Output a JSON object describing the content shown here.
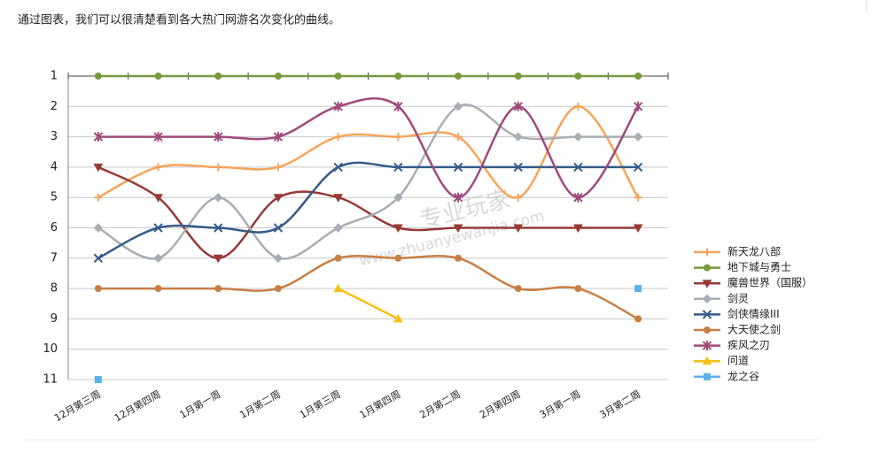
{
  "intro": "通过图表，我们可以很清楚看到各大热门网游名次变化的曲线。",
  "chart_data": {
    "type": "line",
    "smooth": true,
    "y_inverted": true,
    "grid": true,
    "legend": "right",
    "watermark": [
      "专业玩家",
      "www.zhuanyewanjia.com"
    ],
    "categories": [
      "12月第三周",
      "12月第四周",
      "1月第一周",
      "1月第二周",
      "1月第三周",
      "1月第四周",
      "2月第二周",
      "2月第四周",
      "3月第一周",
      "3月第二周"
    ],
    "ylim": [
      1,
      11
    ],
    "yticks": [
      1,
      2,
      3,
      4,
      5,
      6,
      7,
      8,
      9,
      10,
      11
    ],
    "series": [
      {
        "name": "新天龙八部",
        "color": "#f6a45a",
        "marker": "plus",
        "values": [
          5,
          4,
          4,
          4,
          3,
          3,
          3,
          5,
          2,
          5
        ]
      },
      {
        "name": "地下城与勇士",
        "color": "#779a3e",
        "marker": "circle",
        "values": [
          1,
          1,
          1,
          1,
          1,
          1,
          1,
          1,
          1,
          1
        ]
      },
      {
        "name": "魔兽世界（国服）",
        "color": "#963a37",
        "marker": "triangle-down",
        "values": [
          4,
          5,
          7,
          5,
          5,
          6,
          6,
          6,
          6,
          6
        ]
      },
      {
        "name": "剑灵",
        "color": "#a9adb4",
        "marker": "diamond",
        "values": [
          6,
          7,
          5,
          7,
          6,
          5,
          2,
          3,
          3,
          3
        ]
      },
      {
        "name": "剑侠情缘III",
        "color": "#355b88",
        "marker": "x",
        "values": [
          7,
          6,
          6,
          6,
          4,
          4,
          4,
          4,
          4,
          4
        ]
      },
      {
        "name": "大天使之剑",
        "color": "#c87f45",
        "marker": "circle",
        "values": [
          8,
          8,
          8,
          8,
          7,
          7,
          7,
          8,
          8,
          9
        ]
      },
      {
        "name": "疾风之刃",
        "color": "#9f4a7c",
        "marker": "star",
        "values": [
          3,
          3,
          3,
          3,
          2,
          2,
          5,
          2,
          5,
          2
        ]
      },
      {
        "name": "问道",
        "color": "#f3c219",
        "marker": "triangle-up",
        "values": [
          null,
          null,
          null,
          null,
          8,
          9,
          null,
          null,
          null,
          null
        ]
      },
      {
        "name": "龙之谷",
        "color": "#5bb1ea",
        "marker": "square",
        "values": [
          11,
          null,
          null,
          null,
          null,
          null,
          null,
          null,
          null,
          8
        ]
      }
    ]
  }
}
